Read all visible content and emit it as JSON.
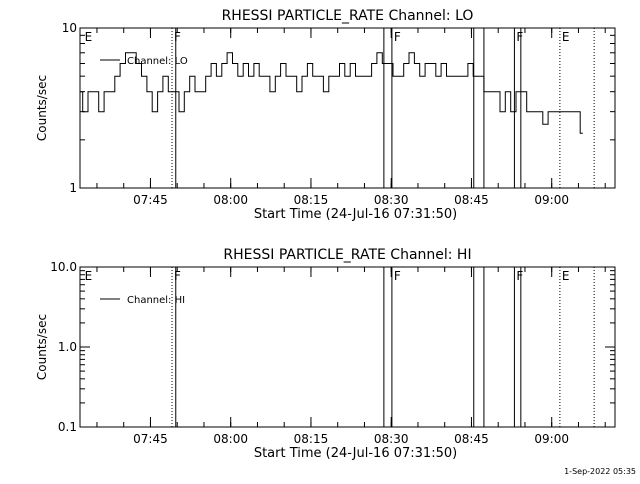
{
  "footer": {
    "timestamp": "1-Sep-2022 05:35"
  },
  "chart_data": [
    {
      "type": "line",
      "title": "RHESSI PARTICLE_RATE Channel: LO",
      "xlabel": "Start Time (24-Jul-16 07:31:50)",
      "ylabel": "Counts/sec",
      "y_scale": "log",
      "ylim": [
        1,
        10
      ],
      "y_ticks": [
        1,
        10
      ],
      "y_tick_labels": [
        "1",
        "10"
      ],
      "xlim_minutes": [
        0,
        100
      ],
      "x_ticks_minutes": [
        13.17,
        28.17,
        43.17,
        58.17,
        73.17,
        88.17
      ],
      "x_tick_labels": [
        "07:45",
        "08:00",
        "08:15",
        "08:30",
        "08:45",
        "09:00"
      ],
      "legend": {
        "position": "top-left",
        "entries": [
          {
            "label": "Channel: LO",
            "color": "#000000"
          }
        ]
      },
      "series": [
        {
          "name": "Channel: LO",
          "x": [
            0,
            1,
            2,
            3,
            4,
            5,
            6,
            7,
            8,
            9,
            10,
            11,
            12,
            13,
            14,
            15,
            16,
            17,
            18,
            19,
            20,
            21,
            22,
            23,
            24,
            25,
            26,
            27,
            28,
            29,
            30,
            31,
            32,
            33,
            34,
            35,
            36,
            37,
            38,
            39,
            40,
            41,
            42,
            43,
            44,
            45,
            46,
            47,
            48,
            49,
            50,
            51,
            52,
            53,
            54,
            55,
            56,
            57,
            58,
            59,
            60,
            61,
            62,
            63,
            64,
            65,
            66,
            67,
            68,
            69,
            70,
            71,
            72,
            73,
            74,
            75,
            76,
            77,
            78,
            79,
            80,
            81,
            82,
            83,
            84,
            85,
            86,
            87,
            88,
            89,
            90,
            91,
            92,
            93,
            94
          ],
          "y": [
            4,
            3,
            4,
            4,
            3,
            4,
            4,
            5,
            6,
            7,
            7,
            6,
            5,
            4,
            3,
            4,
            5,
            4,
            4,
            3,
            4,
            5,
            4,
            4,
            5,
            6,
            5,
            6,
            7,
            6,
            5,
            6,
            5,
            6,
            5,
            5,
            4,
            5,
            6,
            5,
            5,
            4,
            5,
            6,
            5,
            5,
            4,
            5,
            5,
            6,
            5,
            6,
            5,
            5,
            5,
            6,
            7,
            6,
            6,
            5,
            5,
            6,
            7,
            6,
            5,
            6,
            6,
            5,
            6,
            5,
            5,
            5,
            5,
            6,
            5,
            5,
            4,
            4,
            4,
            3,
            4,
            3,
            4,
            4,
            3,
            3,
            3,
            2.5,
            3,
            3,
            3,
            3,
            3,
            3,
            2.2
          ]
        }
      ],
      "markers": [
        {
          "label": "E",
          "x_minutes": 0.5,
          "style": "none"
        },
        {
          "label": "F",
          "x_minutes": 17.2,
          "style": "dotted"
        },
        {
          "label": "F",
          "x_minutes": 58.3,
          "style": "solid"
        },
        {
          "label": "F",
          "x_minutes": 81.2,
          "style": "solid"
        },
        {
          "label": "E",
          "x_minutes": 89.7,
          "style": "dotted"
        }
      ],
      "extra_lines": [
        {
          "x_minutes": 17.9,
          "style": "solid"
        },
        {
          "x_minutes": 56.8,
          "style": "solid"
        },
        {
          "x_minutes": 73.6,
          "style": "solid"
        },
        {
          "x_minutes": 75.5,
          "style": "solid"
        },
        {
          "x_minutes": 82.4,
          "style": "solid"
        },
        {
          "x_minutes": 96.1,
          "style": "dotted"
        }
      ]
    },
    {
      "type": "line",
      "title": "RHESSI PARTICLE_RATE Channel: HI",
      "xlabel": "Start Time (24-Jul-16 07:31:50)",
      "ylabel": "Counts/sec",
      "y_scale": "log",
      "ylim": [
        0.1,
        10
      ],
      "y_ticks": [
        0.1,
        1,
        10
      ],
      "y_tick_labels": [
        "0.1",
        "1.0",
        "10.0"
      ],
      "xlim_minutes": [
        0,
        100
      ],
      "x_ticks_minutes": [
        13.17,
        28.17,
        43.17,
        58.17,
        73.17,
        88.17
      ],
      "x_tick_labels": [
        "07:45",
        "08:00",
        "08:15",
        "08:30",
        "08:45",
        "09:00"
      ],
      "legend": {
        "position": "top-left",
        "entries": [
          {
            "label": "Channel: HI",
            "color": "#000000"
          }
        ]
      },
      "series": [],
      "markers": [
        {
          "label": "E",
          "x_minutes": 0.5,
          "style": "none"
        },
        {
          "label": "F",
          "x_minutes": 17.2,
          "style": "dotted"
        },
        {
          "label": "F",
          "x_minutes": 58.3,
          "style": "solid"
        },
        {
          "label": "F",
          "x_minutes": 81.2,
          "style": "solid"
        },
        {
          "label": "E",
          "x_minutes": 89.7,
          "style": "dotted"
        }
      ],
      "extra_lines": [
        {
          "x_minutes": 17.9,
          "style": "solid"
        },
        {
          "x_minutes": 56.8,
          "style": "solid"
        },
        {
          "x_minutes": 73.6,
          "style": "solid"
        },
        {
          "x_minutes": 75.5,
          "style": "solid"
        },
        {
          "x_minutes": 82.4,
          "style": "solid"
        },
        {
          "x_minutes": 96.1,
          "style": "dotted"
        }
      ]
    }
  ]
}
